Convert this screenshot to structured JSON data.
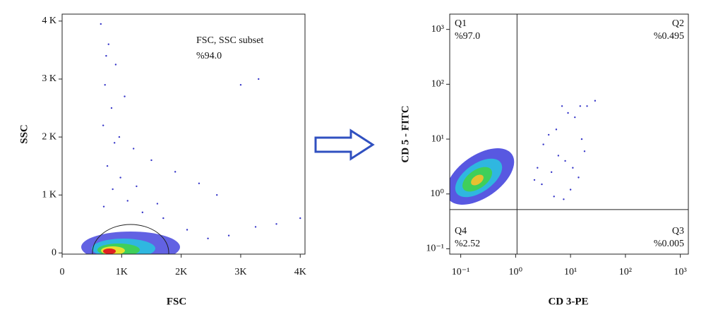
{
  "chart_data": [
    {
      "type": "scatter",
      "xlabel": "FSC",
      "ylabel": "SSC",
      "annotations": [
        "FSC, SSC subset",
        "%94.0"
      ],
      "xlim": [
        0,
        4080
      ],
      "ylim": [
        -20,
        4120
      ],
      "xticks": [
        0,
        {
          "value": 1000,
          "label": "1K"
        },
        {
          "value": 2000,
          "label": "2K"
        },
        {
          "value": 3000,
          "label": "3K"
        },
        {
          "value": 4000,
          "label": "4K"
        }
      ],
      "yticks": [
        0,
        {
          "value": 1000,
          "label": "1 K"
        },
        {
          "value": 2000,
          "label": "2 K"
        },
        {
          "value": 3000,
          "label": "3 K"
        },
        {
          "value": 4000,
          "label": "4 K"
        }
      ],
      "log_x": false,
      "log_y": false,
      "series": [
        {
          "color": "#3636c8",
          "x": [
            650,
            780,
            900,
            720,
            1050,
            830,
            690,
            960,
            1200,
            1500,
            1900,
            2300,
            2600,
            3000,
            3300,
            3600,
            4000,
            760,
            850,
            700,
            1100,
            1350,
            2100,
            2800,
            1700,
            980,
            740,
            880,
            1250,
            1600,
            2450,
            3250
          ],
          "y": [
            3950,
            3600,
            3250,
            2900,
            2700,
            2500,
            2200,
            2000,
            1800,
            1600,
            1400,
            1200,
            1000,
            2900,
            3000,
            500,
            600,
            1500,
            1100,
            800,
            900,
            700,
            400,
            300,
            600,
            1300,
            3400,
            1900,
            1150,
            850,
            250,
            450
          ]
        }
      ]
    },
    {
      "type": "scatter",
      "xlabel": "CD 3-PE",
      "ylabel": "CD 5 - FITC",
      "xlim": [
        0.063,
        1400
      ],
      "ylim": [
        0.08,
        1900
      ],
      "log_x": true,
      "log_y": true,
      "xticks": [
        {
          "value": 0.1,
          "label": "10⁻¹"
        },
        {
          "value": 1,
          "label": "10⁰"
        },
        {
          "value": 10,
          "label": "10¹"
        },
        {
          "value": 100,
          "label": "10²"
        },
        {
          "value": 1000,
          "label": "10³"
        }
      ],
      "yticks": [
        {
          "value": 0.1,
          "label": "10⁻¹"
        },
        {
          "value": 1,
          "label": "10⁰"
        },
        {
          "value": 10,
          "label": "10¹"
        },
        {
          "value": 100,
          "label": "10²"
        },
        {
          "value": 1000,
          "label": "10³"
        }
      ],
      "quadrant_x": 1.06,
      "quadrant_y": 0.52,
      "quadrants": [
        "Q1",
        "Q2",
        "Q3",
        "Q4"
      ],
      "values": [
        97.0,
        0.495,
        0.005,
        2.52
      ],
      "value_labels": [
        "%97.0",
        "%0.495",
        "%0.005",
        "%2.52"
      ],
      "series": [
        {
          "color": "#3636c8",
          "x": [
            2.5,
            3.2,
            4.0,
            5.5,
            7.0,
            9.0,
            12,
            15,
            20,
            28,
            6.0,
            8.0,
            11,
            3.0,
            4.5,
            10,
            14,
            18,
            5.0,
            7.5,
            2.2,
            16
          ],
          "y": [
            3.0,
            8.0,
            12,
            15,
            40,
            30,
            25,
            40,
            40,
            50,
            5.0,
            4.0,
            3.0,
            1.5,
            2.5,
            1.2,
            2.0,
            6.0,
            0.9,
            0.8,
            1.8,
            10
          ]
        }
      ]
    }
  ]
}
